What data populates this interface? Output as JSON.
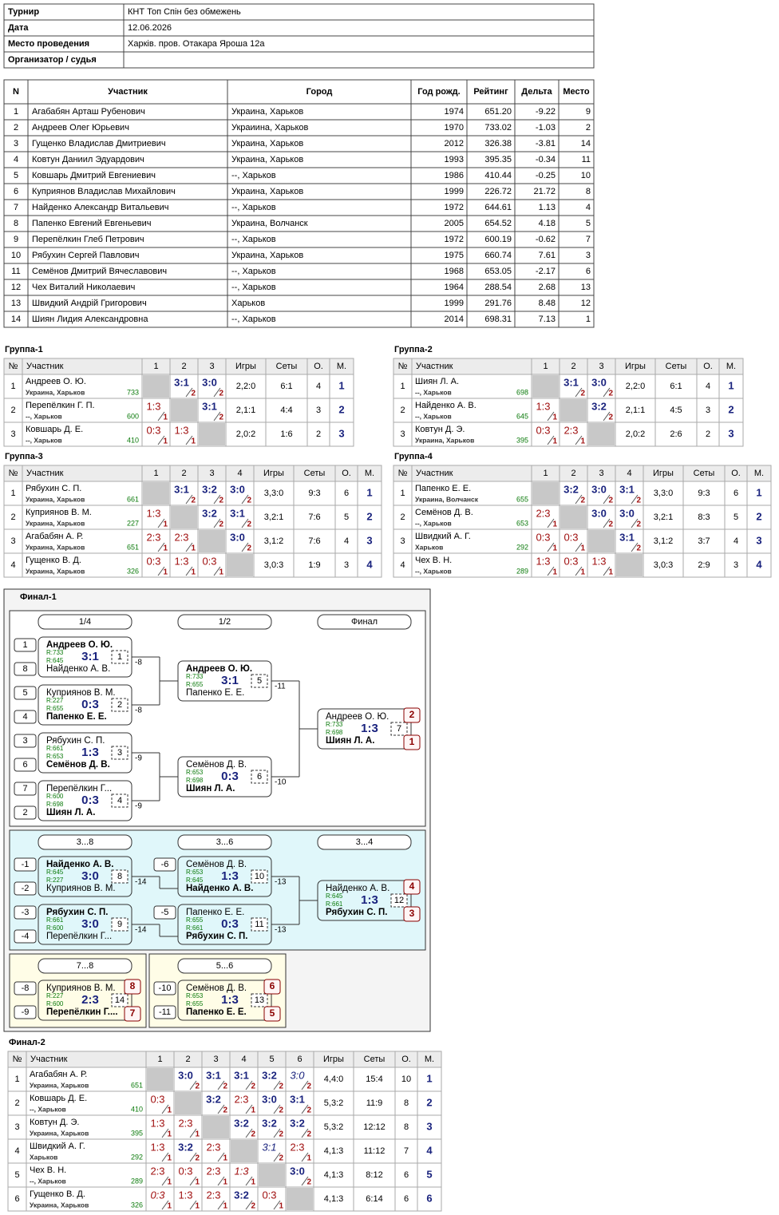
{
  "info": {
    "rows": [
      [
        "Турнир",
        "КНТ Топ Спін без обмежень"
      ],
      [
        "Дата",
        "12.06.2026"
      ],
      [
        "Место проведения",
        "Харків. пров. Отакара Яроша 12а"
      ],
      [
        "Организатор / судья"
      ]
    ]
  },
  "participants": {
    "headers": [
      "N",
      "Участник",
      "Город",
      "Год рожд.",
      "Рейтинг",
      "Дельта",
      "Место"
    ],
    "rows": [
      [
        "1",
        "Агабабян Арташ Рубенович",
        "Украина, Харьков",
        "1974",
        "651.20",
        "-9.22",
        "9"
      ],
      [
        "2",
        "Андреев Олег Юрьевич",
        "Украиина, Харьков",
        "1970",
        "733.02",
        "-1.03",
        "2"
      ],
      [
        "3",
        "Гущенко Владислав Дмитриевич",
        "Украина, Харьков",
        "2012",
        "326.38",
        "-3.81",
        "14"
      ],
      [
        "4",
        "Ковтун Даниил Эдуардович",
        "Украина, Харьков",
        "1993",
        "395.35",
        "-0.34",
        "11"
      ],
      [
        "5",
        "Ковшарь Дмитрий Евгениевич",
        "--, Харьков",
        "1986",
        "410.44",
        "-0.25",
        "10"
      ],
      [
        "6",
        "Куприянов Владислав Михайлович",
        "Украина, Харьков",
        "1999",
        "226.72",
        "21.72",
        "8"
      ],
      [
        "7",
        "Найденко Александр Витальевич",
        "--, Харьков",
        "1972",
        "644.61",
        "1.13",
        "4"
      ],
      [
        "8",
        "Папенко Евгений Евгеньевич",
        "Украина, Волчанск",
        "2005",
        "654.52",
        "4.18",
        "5"
      ],
      [
        "9",
        "Перепёлкин Глеб Петрович",
        "--, Харьков",
        "1972",
        "600.19",
        "-0.62",
        "7"
      ],
      [
        "10",
        "Рябухин Сергей Павлович",
        "Украина, Харьков",
        "1975",
        "660.74",
        "7.61",
        "3"
      ],
      [
        "11",
        "Семёнов Дмитрий Вячеславович",
        "--, Харьков",
        "1968",
        "653.05",
        "-2.17",
        "6"
      ],
      [
        "12",
        "Чех Виталий Николаевич",
        "--, Харьков",
        "1964",
        "288.54",
        "2.68",
        "13"
      ],
      [
        "13",
        "Швидкий Андрій Григорович",
        "Харьков",
        "1999",
        "291.76",
        "8.48",
        "12"
      ],
      [
        "14",
        "Шиян Лидия Александровна",
        "--, Харьков",
        "2014",
        "698.31",
        "7.13",
        "1"
      ]
    ]
  },
  "groups": [
    {
      "title": "Группа-1",
      "headers": [
        "№",
        "Участник",
        "1",
        "2",
        "3",
        "Игры",
        "Сеты",
        "О.",
        "М."
      ],
      "rows": [
        {
          "n": "1",
          "name": "Андреев О. Ю.",
          "city": "Украина, Харьков",
          "rating": "733",
          "cells": [
            null,
            {
              "s": "3:1",
              "p": "2"
            },
            {
              "s": "3:0",
              "p": "2"
            }
          ],
          "games": "2,2:0",
          "sets": "6:1",
          "points": "4",
          "place": "1"
        },
        {
          "n": "2",
          "name": "Перепёлкин Г. П.",
          "city": "--, Харьков",
          "rating": "600",
          "cells": [
            {
              "s": "1:3",
              "p": "1"
            },
            null,
            {
              "s": "3:1",
              "p": "2"
            }
          ],
          "games": "2,1:1",
          "sets": "4:4",
          "points": "3",
          "place": "2"
        },
        {
          "n": "3",
          "name": "Ковшарь Д. Е.",
          "city": "--, Харьков",
          "rating": "410",
          "cells": [
            {
              "s": "0:3",
              "p": "1"
            },
            {
              "s": "1:3",
              "p": "1"
            },
            null
          ],
          "games": "2,0:2",
          "sets": "1:6",
          "points": "2",
          "place": "3"
        }
      ]
    },
    {
      "title": "Группа-2",
      "headers": [
        "№",
        "Участник",
        "1",
        "2",
        "3",
        "Игры",
        "Сеты",
        "О.",
        "М."
      ],
      "rows": [
        {
          "n": "1",
          "name": "Шиян Л. А.",
          "city": "--, Харьков",
          "rating": "698",
          "cells": [
            null,
            {
              "s": "3:1",
              "p": "2"
            },
            {
              "s": "3:0",
              "p": "2"
            }
          ],
          "games": "2,2:0",
          "sets": "6:1",
          "points": "4",
          "place": "1"
        },
        {
          "n": "2",
          "name": "Найденко А. В.",
          "city": "--, Харьков",
          "rating": "645",
          "cells": [
            {
              "s": "1:3",
              "p": "1"
            },
            null,
            {
              "s": "3:2",
              "p": "2"
            }
          ],
          "games": "2,1:1",
          "sets": "4:5",
          "points": "3",
          "place": "2"
        },
        {
          "n": "3",
          "name": "Ковтун Д. Э.",
          "city": "Украина, Харьков",
          "rating": "395",
          "cells": [
            {
              "s": "0:3",
              "p": "1"
            },
            {
              "s": "2:3",
              "p": "1"
            },
            null
          ],
          "games": "2,0:2",
          "sets": "2:6",
          "points": "2",
          "place": "3"
        }
      ]
    },
    {
      "title": "Группа-3",
      "headers": [
        "№",
        "Участник",
        "1",
        "2",
        "3",
        "4",
        "Игры",
        "Сеты",
        "О.",
        "М."
      ],
      "rows": [
        {
          "n": "1",
          "name": "Рябухин С. П.",
          "city": "Украина, Харьков",
          "rating": "661",
          "cells": [
            null,
            {
              "s": "3:1",
              "p": "2"
            },
            {
              "s": "3:2",
              "p": "2"
            },
            {
              "s": "3:0",
              "p": "2"
            }
          ],
          "games": "3,3:0",
          "sets": "9:3",
          "points": "6",
          "place": "1"
        },
        {
          "n": "2",
          "name": "Куприянов В. М.",
          "city": "Украина, Харьков",
          "rating": "227",
          "cells": [
            {
              "s": "1:3",
              "p": "1"
            },
            null,
            {
              "s": "3:2",
              "p": "2"
            },
            {
              "s": "3:1",
              "p": "2"
            }
          ],
          "games": "3,2:1",
          "sets": "7:6",
          "points": "5",
          "place": "2"
        },
        {
          "n": "3",
          "name": "Агабабян А. Р.",
          "city": "Украина, Харьков",
          "rating": "651",
          "cells": [
            {
              "s": "2:3",
              "p": "1"
            },
            {
              "s": "2:3",
              "p": "1"
            },
            null,
            {
              "s": "3:0",
              "p": "2"
            }
          ],
          "games": "3,1:2",
          "sets": "7:6",
          "points": "4",
          "place": "3"
        },
        {
          "n": "4",
          "name": "Гущенко В. Д.",
          "city": "Украина, Харьков",
          "rating": "326",
          "cells": [
            {
              "s": "0:3",
              "p": "1"
            },
            {
              "s": "1:3",
              "p": "1"
            },
            {
              "s": "0:3",
              "p": "1"
            },
            null
          ],
          "games": "3,0:3",
          "sets": "1:9",
          "points": "3",
          "place": "4"
        }
      ]
    },
    {
      "title": "Группа-4",
      "headers": [
        "№",
        "Участник",
        "1",
        "2",
        "3",
        "4",
        "Игры",
        "Сеты",
        "О.",
        "М."
      ],
      "rows": [
        {
          "n": "1",
          "name": "Папенко Е. Е.",
          "city": "Украина, Волчанск",
          "rating": "655",
          "cells": [
            null,
            {
              "s": "3:2",
              "p": "2"
            },
            {
              "s": "3:0",
              "p": "2"
            },
            {
              "s": "3:1",
              "p": "2"
            }
          ],
          "games": "3,3:0",
          "sets": "9:3",
          "points": "6",
          "place": "1"
        },
        {
          "n": "2",
          "name": "Семёнов Д. В.",
          "city": "--, Харьков",
          "rating": "653",
          "cells": [
            {
              "s": "2:3",
              "p": "1"
            },
            null,
            {
              "s": "3:0",
              "p": "2"
            },
            {
              "s": "3:0",
              "p": "2"
            }
          ],
          "games": "3,2:1",
          "sets": "8:3",
          "points": "5",
          "place": "2"
        },
        {
          "n": "3",
          "name": "Швидкий А. Г.",
          "city": "Харьков",
          "rating": "292",
          "cells": [
            {
              "s": "0:3",
              "p": "1"
            },
            {
              "s": "0:3",
              "p": "1"
            },
            null,
            {
              "s": "3:1",
              "p": "2"
            }
          ],
          "games": "3,1:2",
          "sets": "3:7",
          "points": "4",
          "place": "3"
        },
        {
          "n": "4",
          "name": "Чех В. Н.",
          "city": "--, Харьков",
          "rating": "289",
          "cells": [
            {
              "s": "1:3",
              "p": "1"
            },
            {
              "s": "0:3",
              "p": "1"
            },
            {
              "s": "1:3",
              "p": "1"
            },
            null
          ],
          "games": "3,0:3",
          "sets": "2:9",
          "points": "3",
          "place": "4"
        }
      ]
    }
  ],
  "final1": {
    "title": "Финал-1",
    "stages": [
      "1/4",
      "1/2",
      "Финал",
      "3...8",
      "3...6",
      "3...4",
      "7...8",
      "5...6"
    ],
    "matches": [
      {
        "seeds": [
          "1",
          "8"
        ],
        "p1": {
          "name": "Андреев О. Ю.",
          "rating": "R:733",
          "bold": true
        },
        "p2": {
          "name": "Найденко А. В.",
          "rating": "R:645"
        },
        "score": "3:1",
        "num": "1",
        "loser": "-8"
      },
      {
        "seeds": [
          "5",
          "4"
        ],
        "p1": {
          "name": "Куприянов В. М.",
          "rating": "R:227"
        },
        "p2": {
          "name": "Папенко Е. Е.",
          "rating": "R:655",
          "bold": true
        },
        "score": "0:3",
        "num": "2",
        "loser": "-8"
      },
      {
        "seeds": [
          "3",
          "6"
        ],
        "p1": {
          "name": "Рябухин С. П.",
          "rating": "R:661"
        },
        "p2": {
          "name": "Семёнов Д. В.",
          "rating": "R:653",
          "bold": true
        },
        "score": "1:3",
        "num": "3",
        "loser": "-9"
      },
      {
        "seeds": [
          "7",
          "2"
        ],
        "p1": {
          "name": "Перепёлкин Г...",
          "rating": "R:600"
        },
        "p2": {
          "name": "Шиян Л. А.",
          "rating": "R:698",
          "bold": true
        },
        "score": "0:3",
        "num": "4",
        "loser": "-9"
      },
      {
        "p1": {
          "name": "Андреев О. Ю.",
          "rating": "R:733",
          "bold": true
        },
        "p2": {
          "name": "Папенко Е. Е.",
          "rating": "R:655"
        },
        "score": "3:1",
        "num": "5",
        "loser": "-11"
      },
      {
        "p1": {
          "name": "Семёнов Д. В.",
          "rating": "R:653"
        },
        "p2": {
          "name": "Шиян Л. А.",
          "rating": "R:698",
          "bold": true
        },
        "score": "0:3",
        "num": "6",
        "loser": "-10"
      },
      {
        "p1": {
          "name": "Андреев О. Ю.",
          "rating": "R:733"
        },
        "p2": {
          "name": "Шиян Л. А.",
          "rating": "R:698",
          "bold": true
        },
        "score": "1:3",
        "num": "7",
        "places": [
          "2",
          "1"
        ]
      },
      {
        "seeds": [
          "-1",
          "-2"
        ],
        "p1": {
          "name": "Найденко А. В.",
          "rating": "R:645",
          "bold": true
        },
        "p2": {
          "name": "Куприянов В. М.",
          "rating": "R:227"
        },
        "score": "3:0",
        "num": "8",
        "loser": "-14"
      },
      {
        "seeds": [
          "-3",
          "-4"
        ],
        "p1": {
          "name": "Рябухин С. П.",
          "rating": "R:661",
          "bold": true
        },
        "p2": {
          "name": "Перепёлкин Г...",
          "rating": "R:600"
        },
        "score": "3:0",
        "num": "9",
        "loser": "-14"
      },
      {
        "seeds": [
          "-6",
          null
        ],
        "p1": {
          "name": "Семёнов Д. В.",
          "rating": "R:653"
        },
        "p2": {
          "name": "Найденко А. В.",
          "rating": "R:645",
          "bold": true
        },
        "score": "1:3",
        "num": "10",
        "loser": "-13"
      },
      {
        "seeds": [
          "-5",
          null
        ],
        "p1": {
          "name": "Папенко Е. Е.",
          "rating": "R:655"
        },
        "p2": {
          "name": "Рябухин С. П.",
          "rating": "R:661",
          "bold": true
        },
        "score": "0:3",
        "num": "11",
        "loser": "-13"
      },
      {
        "p1": {
          "name": "Найденко А. В.",
          "rating": "R:645"
        },
        "p2": {
          "name": "Рябухин С. П.",
          "rating": "R:661",
          "bold": true
        },
        "score": "1:3",
        "num": "12",
        "places": [
          "4",
          "3"
        ]
      },
      {
        "seeds": [
          "-8",
          "-9"
        ],
        "p1": {
          "name": "Куприянов В. М.",
          "rating": "R:227"
        },
        "p2": {
          "name": "Перепёлкин Г....",
          "rating": "R:600",
          "bold": true
        },
        "score": "2:3",
        "num": "14",
        "places": [
          "8",
          "7"
        ]
      },
      {
        "seeds": [
          "-10",
          "-11"
        ],
        "p1": {
          "name": "Семёнов Д. В.",
          "rating": "R:653"
        },
        "p2": {
          "name": "Папенко Е. Е.",
          "rating": "R:655",
          "bold": true
        },
        "score": "1:3",
        "num": "13",
        "places": [
          "6",
          "5"
        ]
      }
    ]
  },
  "final2": {
    "title": "Финал-2",
    "headers": [
      "№",
      "Участник",
      "1",
      "2",
      "3",
      "4",
      "5",
      "6",
      "Игры",
      "Сеты",
      "О.",
      "М."
    ],
    "rows": [
      {
        "n": "1",
        "name": "Агабабян А. Р.",
        "city": "Украина, Харьков",
        "rating": "651",
        "cells": [
          null,
          {
            "s": "3:0",
            "p": "2"
          },
          {
            "s": "3:1",
            "p": "2"
          },
          {
            "s": "3:1",
            "p": "2"
          },
          {
            "s": "3:2",
            "p": "2"
          },
          {
            "s": "3:0",
            "p": "2",
            "tech": true
          }
        ],
        "games": "4,4:0",
        "sets": "15:4",
        "points": "10",
        "place": "1"
      },
      {
        "n": "2",
        "name": "Ковшарь Д. Е.",
        "city": "--, Харьков",
        "rating": "410",
        "cells": [
          {
            "s": "0:3",
            "p": "1"
          },
          null,
          {
            "s": "3:2",
            "p": "2"
          },
          {
            "s": "2:3",
            "p": "1"
          },
          {
            "s": "3:0",
            "p": "2"
          },
          {
            "s": "3:1",
            "p": "2"
          }
        ],
        "games": "5,3:2",
        "sets": "11:9",
        "points": "8",
        "place": "2"
      },
      {
        "n": "3",
        "name": "Ковтун Д. Э.",
        "city": "Украина, Харьков",
        "rating": "395",
        "cells": [
          {
            "s": "1:3",
            "p": "1"
          },
          {
            "s": "2:3",
            "p": "1"
          },
          null,
          {
            "s": "3:2",
            "p": "2"
          },
          {
            "s": "3:2",
            "p": "2"
          },
          {
            "s": "3:2",
            "p": "2"
          }
        ],
        "games": "5,3:2",
        "sets": "12:12",
        "points": "8",
        "place": "3"
      },
      {
        "n": "4",
        "name": "Швидкий А. Г.",
        "city": "Харьков",
        "rating": "292",
        "cells": [
          {
            "s": "1:3",
            "p": "1"
          },
          {
            "s": "3:2",
            "p": "2"
          },
          {
            "s": "2:3",
            "p": "1"
          },
          null,
          {
            "s": "3:1",
            "p": "2",
            "tech": true
          },
          {
            "s": "2:3",
            "p": "1"
          }
        ],
        "games": "4,1:3",
        "sets": "11:12",
        "points": "7",
        "place": "4"
      },
      {
        "n": "5",
        "name": "Чех В. Н.",
        "city": "--, Харьков",
        "rating": "289",
        "cells": [
          {
            "s": "2:3",
            "p": "1"
          },
          {
            "s": "0:3",
            "p": "1"
          },
          {
            "s": "2:3",
            "p": "1"
          },
          {
            "s": "1:3",
            "p": "1",
            "tech": true
          },
          null,
          {
            "s": "3:0",
            "p": "2"
          }
        ],
        "games": "4,1:3",
        "sets": "8:12",
        "points": "6",
        "place": "5"
      },
      {
        "n": "6",
        "name": "Гущенко В. Д.",
        "city": "Украина, Харьков",
        "rating": "326",
        "cells": [
          {
            "s": "0:3",
            "p": "1",
            "tech": true
          },
          {
            "s": "1:3",
            "p": "1"
          },
          {
            "s": "2:3",
            "p": "1"
          },
          {
            "s": "3:2",
            "p": "2"
          },
          {
            "s": "0:3",
            "p": "1"
          },
          null
        ],
        "games": "4,1:3",
        "sets": "6:14",
        "points": "6",
        "place": "6"
      }
    ]
  }
}
